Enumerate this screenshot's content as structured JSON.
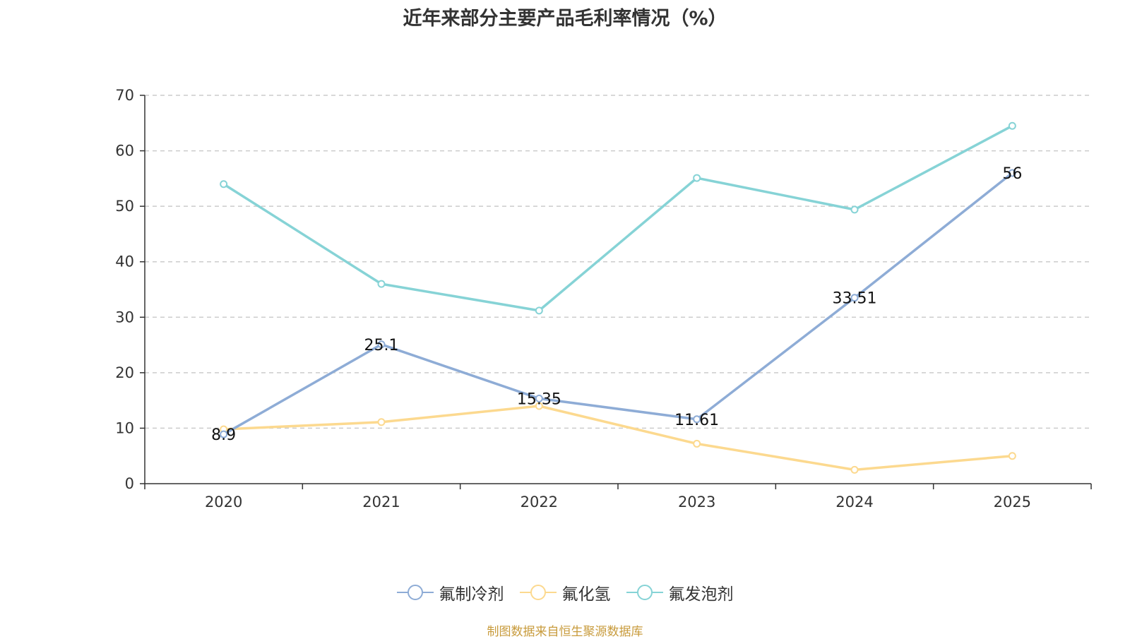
{
  "chart_data": {
    "type": "line",
    "title": "近年来部分主要产品毛利率情况（%）",
    "categories": [
      "2020",
      "2021",
      "2022",
      "2023",
      "2024",
      "2025"
    ],
    "ylim": [
      0,
      70
    ],
    "yticks": [
      0,
      10,
      20,
      30,
      40,
      50,
      60,
      70
    ],
    "grid": true,
    "legend_position": "bottom",
    "series": [
      {
        "name": "氟制冷剂",
        "color": "#8eacd6",
        "values": [
          8.9,
          25.1,
          15.35,
          11.61,
          33.51,
          56
        ],
        "labels": [
          "8.9",
          "25.1",
          "15.35",
          "11.61",
          "33.51",
          "56"
        ]
      },
      {
        "name": "氟化氢",
        "color": "#fcd98f",
        "values": [
          9.8,
          11.1,
          14.0,
          7.2,
          2.5,
          5.0
        ]
      },
      {
        "name": "氟发泡剂",
        "color": "#86d3d6",
        "values": [
          54.0,
          36.0,
          31.2,
          55.1,
          49.4,
          64.5
        ]
      }
    ]
  },
  "source_note": "制图数据来自恒生聚源数据库"
}
